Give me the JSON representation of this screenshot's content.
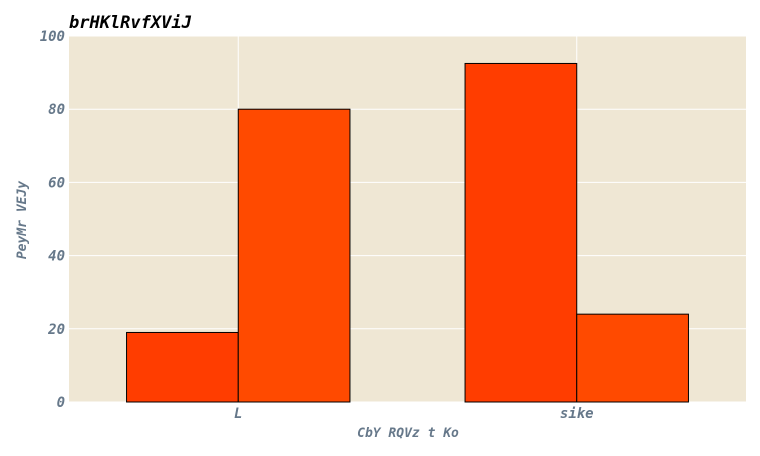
{
  "chart_data": {
    "type": "bar",
    "title": "brHKlRvfXViJ",
    "xlabel": "CbY RQVz t Ko",
    "ylabel": "PeyMr VEJy",
    "categories": [
      "L",
      "sike"
    ],
    "series": [
      {
        "values": [
          19,
          92.5
        ],
        "color": "#ff3d00"
      },
      {
        "values": [
          80,
          24
        ],
        "color": "#ff4a00"
      }
    ],
    "ylim": [
      0,
      100
    ],
    "yticks": [
      0,
      20,
      40,
      60,
      80,
      100
    ],
    "grid": true,
    "background_color": "#efe7d4",
    "grid_color": "#ffffff",
    "bar_edge_color": "#000000"
  }
}
